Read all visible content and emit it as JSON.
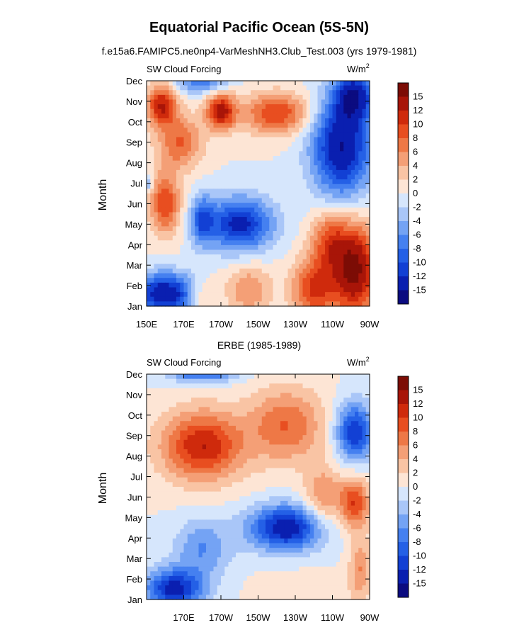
{
  "figure": {
    "title": "Equatorial Pacific Ocean (5S-5N)"
  },
  "chart_data": [
    {
      "type": "heatmap",
      "title": "f.e15a6.FAMIPC5.ne0np4-VarMeshNH3.Club_Test.003 (yrs 1979-1981)",
      "left_label": "SW Cloud Forcing",
      "units_label": "W/m",
      "units_sup": "2",
      "ylabel": "Month",
      "x_ticks": [
        "150E",
        "170E",
        "170W",
        "150W",
        "130W",
        "110W",
        "90W"
      ],
      "y_ticks": [
        "Jan",
        "Feb",
        "Mar",
        "Apr",
        "May",
        "Jun",
        "Jul",
        "Aug",
        "Sep",
        "Oct",
        "Nov",
        "Dec"
      ],
      "colorbar_labels": [
        "15",
        "12",
        "10",
        "8",
        "6",
        "4",
        "2",
        "0",
        "-2",
        "-4",
        "-6",
        "-8",
        "-10",
        "-12",
        "-15"
      ],
      "x_range_deg": [
        150,
        270
      ],
      "features": [
        {
          "x": 160,
          "y": 0.6,
          "v": -15,
          "rx": 16,
          "ry": 1.0
        },
        {
          "x": 180,
          "y": 0.5,
          "v": 4,
          "rx": 8,
          "ry": 0.8
        },
        {
          "x": 205,
          "y": 0.8,
          "v": 6,
          "rx": 12,
          "ry": 1.2
        },
        {
          "x": 240,
          "y": 0.8,
          "v": 10,
          "rx": 12,
          "ry": 1.5
        },
        {
          "x": 262,
          "y": 1.8,
          "v": 16,
          "rx": 12,
          "ry": 2.2
        },
        {
          "x": 248,
          "y": 3.2,
          "v": 8,
          "rx": 10,
          "ry": 1.5
        },
        {
          "x": 200,
          "y": 4.0,
          "v": -13,
          "rx": 18,
          "ry": 1.3
        },
        {
          "x": 180,
          "y": 4.2,
          "v": -8,
          "rx": 6,
          "ry": 1.2
        },
        {
          "x": 160,
          "y": 5.0,
          "v": 10,
          "rx": 8,
          "ry": 1.5
        },
        {
          "x": 168,
          "y": 8.0,
          "v": 8,
          "rx": 12,
          "ry": 1.3
        },
        {
          "x": 158,
          "y": 9.8,
          "v": 12,
          "rx": 8,
          "ry": 1.0
        },
        {
          "x": 190,
          "y": 9.5,
          "v": 13,
          "rx": 8,
          "ry": 0.9
        },
        {
          "x": 220,
          "y": 9.4,
          "v": 10,
          "rx": 18,
          "ry": 1.0
        },
        {
          "x": 255,
          "y": 7.8,
          "v": -15,
          "rx": 16,
          "ry": 2.5
        },
        {
          "x": 262,
          "y": 10.3,
          "v": -12,
          "rx": 10,
          "ry": 1.2
        },
        {
          "x": 180,
          "y": 11.0,
          "v": -8,
          "rx": 14,
          "ry": 0.6
        },
        {
          "x": 151,
          "y": 6.0,
          "v": -6,
          "rx": 2,
          "ry": 0.4
        }
      ]
    },
    {
      "type": "heatmap",
      "title": "ERBE (1985-1989)",
      "left_label": "SW Cloud Forcing",
      "units_label": "W/m",
      "units_sup": "2",
      "ylabel": "Month",
      "x_ticks": [
        "170E",
        "170W",
        "150W",
        "130W",
        "110W",
        "90W"
      ],
      "y_ticks": [
        "Jan",
        "Feb",
        "Mar",
        "Apr",
        "May",
        "Jun",
        "Jul",
        "Aug",
        "Sep",
        "Oct",
        "Nov",
        "Dec"
      ],
      "colorbar_labels": [
        "15",
        "12",
        "10",
        "8",
        "6",
        "4",
        "2",
        "0",
        "-2",
        "-4",
        "-6",
        "-8",
        "-10",
        "-12",
        "-15"
      ],
      "x_range_deg": [
        150,
        270
      ],
      "features": [
        {
          "x": 165,
          "y": 0.5,
          "v": -13,
          "rx": 16,
          "ry": 1.0
        },
        {
          "x": 180,
          "y": 11.3,
          "v": -13,
          "rx": 18,
          "ry": 0.6
        },
        {
          "x": 225,
          "y": 3.5,
          "v": -14,
          "rx": 20,
          "ry": 1.1
        },
        {
          "x": 180,
          "y": 2.5,
          "v": -6,
          "rx": 15,
          "ry": 1.4
        },
        {
          "x": 180,
          "y": 7.5,
          "v": 12,
          "rx": 22,
          "ry": 1.7
        },
        {
          "x": 225,
          "y": 8.5,
          "v": 8,
          "rx": 20,
          "ry": 1.8
        },
        {
          "x": 245,
          "y": 5.0,
          "v": 6,
          "rx": 10,
          "ry": 1.5
        },
        {
          "x": 262,
          "y": 4.7,
          "v": 10,
          "rx": 8,
          "ry": 1.2
        },
        {
          "x": 265,
          "y": 1.5,
          "v": 6,
          "rx": 6,
          "ry": 1.5
        },
        {
          "x": 262,
          "y": 8.2,
          "v": -12,
          "rx": 10,
          "ry": 1.4
        },
        {
          "x": 235,
          "y": 0.5,
          "v": 2,
          "rx": 22,
          "ry": 0.8
        }
      ]
    }
  ]
}
